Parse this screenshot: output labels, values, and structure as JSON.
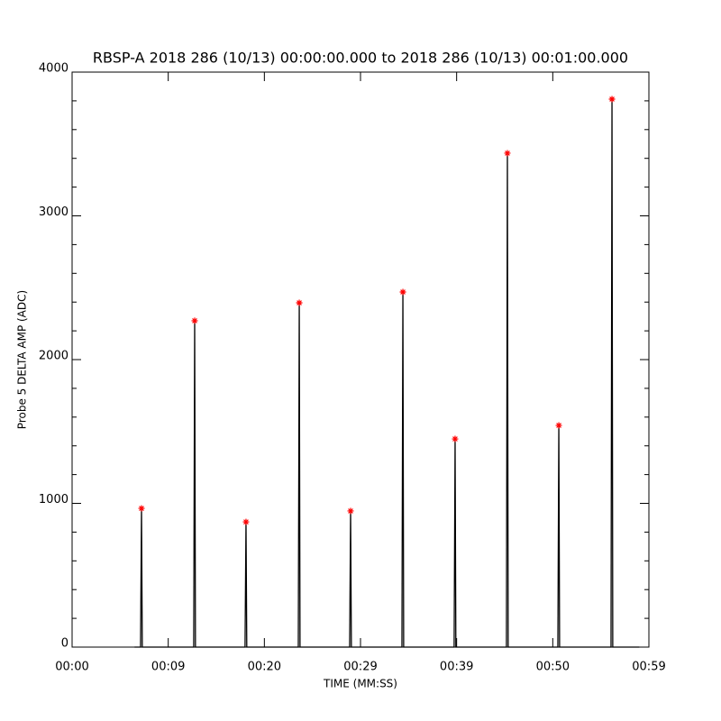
{
  "chart_data": {
    "type": "line",
    "title": "RBSP-A 2018 286 (10/13) 00:00:00.000 to 2018 286 (10/13) 00:01:00.000",
    "x_label": "TIME (MM:SS)",
    "y_label": "Probe 5 DELTA AMP (ADC)",
    "xlim": [
      0,
      60
    ],
    "ylim": [
      0,
      4000
    ],
    "xticks": [
      {
        "value": 0,
        "label": "00:00"
      },
      {
        "value": 10,
        "label": "00:09"
      },
      {
        "value": 20,
        "label": "00:20"
      },
      {
        "value": 30,
        "label": "00:29"
      },
      {
        "value": 40,
        "label": "00:39"
      },
      {
        "value": 50,
        "label": "00:50"
      },
      {
        "value": 60,
        "label": "00:59"
      }
    ],
    "yticks": [
      0,
      1000,
      2000,
      3000,
      4000
    ],
    "y_minor_ticks": [
      200,
      400,
      600,
      800,
      1200,
      1400,
      1600,
      1800,
      2200,
      2400,
      2600,
      2800,
      3200,
      3400,
      3600,
      3800
    ],
    "series": [
      {
        "color": "#000000",
        "marker": "none",
        "x": [
          6.5,
          7.12,
          7.22,
          7.3,
          12.65,
          12.75,
          12.83,
          17.99,
          18.09,
          18.17,
          23.53,
          23.63,
          23.71,
          28.87,
          28.97,
          29.05,
          34.31,
          34.41,
          34.49,
          39.74,
          39.84,
          39.92,
          45.18,
          45.28,
          45.36,
          50.53,
          50.63,
          50.71,
          56.06,
          56.16,
          56.24,
          59
        ],
        "values": [
          0,
          0,
          965,
          0,
          0,
          2270,
          0,
          0,
          871,
          0,
          0,
          2395,
          0,
          0,
          947,
          0,
          0,
          2470,
          0,
          0,
          1448,
          0,
          0,
          3436,
          0,
          0,
          1542,
          0,
          0,
          3812,
          0,
          0
        ]
      },
      {
        "color": "#ff0000",
        "marker": "asterisk",
        "x": [
          7.22,
          12.75,
          18.09,
          23.63,
          28.97,
          34.41,
          39.84,
          45.28,
          50.63,
          56.16
        ],
        "values": [
          965,
          2270,
          871,
          2395,
          947,
          2470,
          1448,
          3436,
          1542,
          3812
        ]
      }
    ]
  }
}
